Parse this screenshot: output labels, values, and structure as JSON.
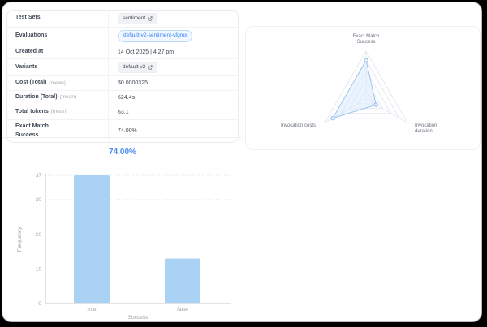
{
  "table": {
    "rows": [
      {
        "label": "Test Sets",
        "sublabel": "",
        "value": "sentiment",
        "value_type": "pill-gray",
        "has_external_link_icon": true,
        "name": "test-set-pill"
      },
      {
        "label": "Evaluations",
        "sublabel": "",
        "value": "default-v2-sentiment-vfgmx",
        "value_type": "pill-blue",
        "has_external_link_icon": false,
        "name": "evaluation-pill"
      },
      {
        "label": "Created at",
        "sublabel": "",
        "value": "14 Oct 2025 | 4:27 pm",
        "value_type": "text",
        "has_external_link_icon": false,
        "name": "created-at-value"
      },
      {
        "label": "Variants",
        "sublabel": "",
        "value": "default v2",
        "value_type": "pill-gray",
        "has_external_link_icon": true,
        "name": "variant-pill"
      },
      {
        "label": "Cost (Total)",
        "sublabel": "(mean)",
        "value": "$0.0000325",
        "value_type": "text",
        "has_external_link_icon": false,
        "name": "cost-value"
      },
      {
        "label": "Duration (Total)",
        "sublabel": "(mean)",
        "value": "624.4s",
        "value_type": "text",
        "has_external_link_icon": false,
        "name": "duration-value"
      },
      {
        "label": "Total tokens",
        "sublabel": "(mean)",
        "value": "63.1",
        "value_type": "text",
        "has_external_link_icon": false,
        "name": "tokens-value"
      },
      {
        "label": "Exact Match\nSuccess",
        "sublabel": "",
        "value": "74.00%",
        "value_type": "text",
        "has_external_link_icon": false,
        "name": "exact-match-value"
      }
    ]
  },
  "chart_data": [
    {
      "type": "bar",
      "title": "74.00%",
      "categories": [
        "true",
        "false"
      ],
      "values": [
        37,
        13
      ],
      "xlabel": "Success",
      "ylabel": "Frequency",
      "yticks": [
        0,
        10,
        20,
        30,
        37
      ],
      "ylim": [
        0,
        37
      ],
      "grid": "dotted-horizontal",
      "legend": "none"
    },
    {
      "type": "radar",
      "axes": [
        {
          "label": "Exact Match Success",
          "label_lines": [
            "Exact Match",
            "Success"
          ],
          "value_normalized": 0.81
        },
        {
          "label": "Invocation duration",
          "label_lines": [
            "Invocation",
            "duration"
          ],
          "value_normalized": 0.24
        },
        {
          "label": "Invocation costs",
          "label_lines": [
            "Invocation costs"
          ],
          "value_normalized": 0.8
        }
      ],
      "grid_levels": [
        0.2,
        0.4,
        0.6,
        0.8,
        1.0
      ],
      "legend": "none"
    }
  ],
  "colors": {
    "accent_blue": "#3b82f6",
    "title_blue": "#4b8af0",
    "bar_fill": "#a9d2f4",
    "radar_fill": "#dbeafe",
    "radar_stroke": "#9ec5ef",
    "pill_blue_bg": "#f0f7ff",
    "pill_blue_border": "#bcd8fb",
    "pill_gray_bg": "#f1f2f5",
    "text_primary": "#414a57",
    "text_muted": "#9aa0a8",
    "grid_line": "#dadde1",
    "axis_line": "#c3c7cc"
  }
}
